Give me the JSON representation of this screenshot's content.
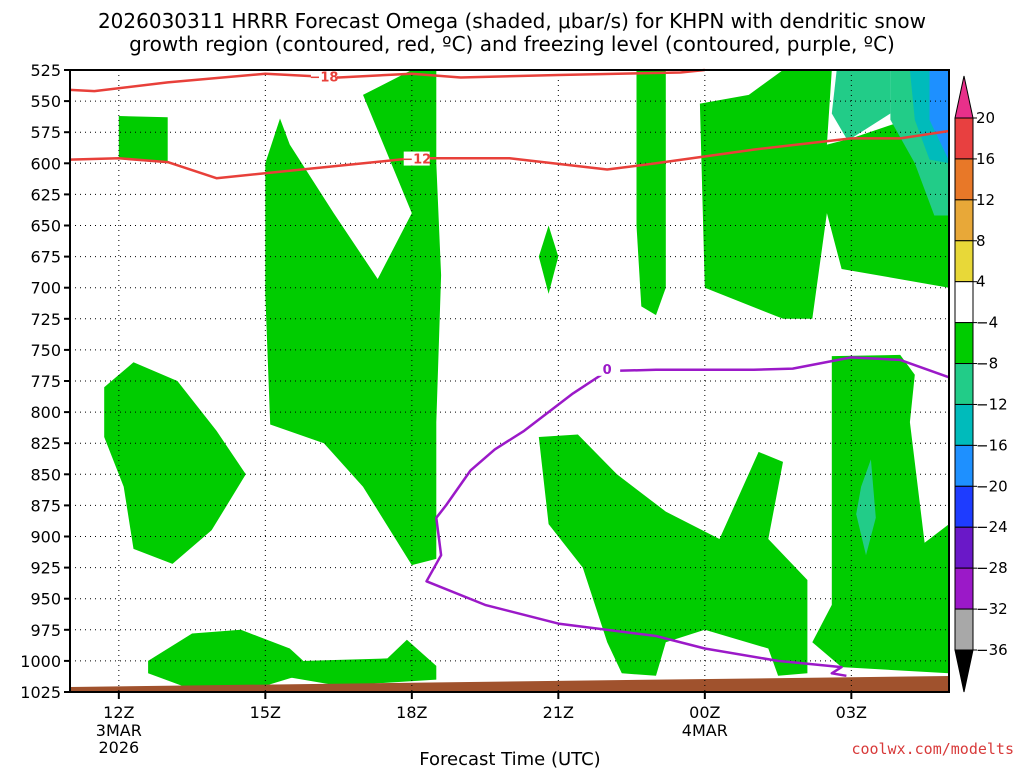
{
  "header": {
    "title_line1": "2026030311 HRRR Forecast Omega (shaded, μbar/s) for KHPN with dendritic snow",
    "title_line2": "growth region (contoured, red, ºC) and freezing level (contoured, purple, ºC)"
  },
  "footer": {
    "credit": "coolwx.com/modelts"
  },
  "colors": {
    "omega_minus4_to_minus8": "#00cc00",
    "omega_minus8_to_minus12": "#22cc88",
    "omega_minus12_to_minus16": "#00bbbb",
    "omega_minus16_to_minus20": "#1e90ff",
    "dgz_contour": "#e8403a",
    "freezing_contour": "#9b19c8",
    "ground": "#a0522d"
  },
  "chart_data": {
    "type": "heatmap",
    "xlabel": "Forecast Time (UTC)",
    "ylabel": "",
    "x_ticks": [
      {
        "hour": 12,
        "label": "12Z",
        "sub": [
          "3MAR",
          "2026"
        ]
      },
      {
        "hour": 15,
        "label": "15Z",
        "sub": []
      },
      {
        "hour": 18,
        "label": "18Z",
        "sub": []
      },
      {
        "hour": 21,
        "label": "21Z",
        "sub": []
      },
      {
        "hour": 24,
        "label": "00Z",
        "sub": [
          "4MAR"
        ]
      },
      {
        "hour": 27,
        "label": "03Z",
        "sub": []
      }
    ],
    "xlim": [
      11,
      29
    ],
    "y_ticks": [
      525,
      550,
      575,
      600,
      625,
      650,
      675,
      700,
      725,
      750,
      775,
      800,
      825,
      850,
      875,
      900,
      925,
      950,
      975,
      1000,
      1025
    ],
    "ylim": [
      525,
      1025
    ],
    "grid": true,
    "colorbar": {
      "labels": [
        "20",
        "16",
        "12",
        "8",
        "4",
        "−4",
        "−8",
        "−12",
        "−16",
        "−20",
        "−24",
        "−28",
        "−32",
        "−36"
      ],
      "bands": [
        "#e8308a",
        "#e84040",
        "#e87828",
        "#e8a838",
        "#e8d838",
        "#ffffff",
        "#00cc00",
        "#22cc88",
        "#00bbbb",
        "#1e90ff",
        "#1e3cff",
        "#6a18c8",
        "#9b19c8",
        "#a8a8a8",
        "#000000"
      ]
    },
    "contours": [
      {
        "name": "-18",
        "label": "−18",
        "label_at": [
          16.2,
          531
        ],
        "color": "#e8403a",
        "points": [
          [
            11,
            541
          ],
          [
            11.5,
            542
          ],
          [
            13,
            535
          ],
          [
            15,
            528
          ],
          [
            16.5,
            531
          ],
          [
            18,
            528
          ],
          [
            19,
            531
          ],
          [
            21,
            529
          ],
          [
            23.5,
            527
          ],
          [
            24,
            522
          ]
        ]
      },
      {
        "name": "-12",
        "label": "−12",
        "label_at": [
          18.1,
          597
        ],
        "color": "#e8403a",
        "points": [
          [
            11,
            597
          ],
          [
            12,
            596
          ],
          [
            13,
            599
          ],
          [
            14,
            612
          ],
          [
            16,
            604
          ],
          [
            18,
            596
          ],
          [
            20,
            596
          ],
          [
            22,
            605
          ],
          [
            23,
            600
          ],
          [
            25,
            589
          ],
          [
            27,
            580
          ],
          [
            28,
            580
          ],
          [
            29,
            574
          ]
        ]
      },
      {
        "name": "0",
        "label": "0",
        "label_at": [
          22.0,
          766
        ],
        "color": "#9b19c8",
        "points": [
          [
            29,
            772
          ],
          [
            28,
            758
          ],
          [
            27,
            756
          ],
          [
            25.8,
            765
          ],
          [
            25,
            766
          ],
          [
            23,
            766
          ],
          [
            22,
            767
          ],
          [
            21.3,
            785
          ],
          [
            20.3,
            815
          ],
          [
            19.7,
            830
          ],
          [
            19.2,
            847
          ],
          [
            18.7,
            875
          ],
          [
            18.5,
            885
          ],
          [
            18.6,
            915
          ],
          [
            18.3,
            936
          ],
          [
            19.5,
            955
          ],
          [
            21,
            970
          ],
          [
            23,
            980
          ],
          [
            24,
            990
          ],
          [
            25.5,
            1000
          ],
          [
            26.8,
            1005
          ],
          [
            26.6,
            1010
          ],
          [
            26.9,
            1012
          ]
        ]
      }
    ],
    "omega_regions": [
      {
        "level": "-4",
        "pts": [
          [
            12,
            562
          ],
          [
            13,
            563
          ],
          [
            13,
            600
          ],
          [
            12,
            596
          ]
        ]
      },
      {
        "level": "-4",
        "pts": [
          [
            11.7,
            780
          ],
          [
            12.3,
            760
          ],
          [
            13.2,
            775
          ],
          [
            14,
            815
          ],
          [
            14.6,
            850
          ],
          [
            13.9,
            895
          ],
          [
            13.1,
            922
          ],
          [
            12.3,
            910
          ],
          [
            12.1,
            860
          ],
          [
            11.7,
            820
          ]
        ]
      },
      {
        "level": "-4",
        "pts": [
          [
            12.6,
            1000
          ],
          [
            13.5,
            978
          ],
          [
            14.5,
            975
          ],
          [
            15.5,
            990
          ],
          [
            16,
            1008
          ],
          [
            15,
            1020
          ],
          [
            13.5,
            1023
          ],
          [
            12.6,
            1010
          ]
        ]
      },
      {
        "level": "-4",
        "pts": [
          [
            15.3,
            564
          ],
          [
            15.5,
            585
          ],
          [
            16.4,
            640
          ],
          [
            17.3,
            693
          ],
          [
            18,
            640
          ],
          [
            17,
            545
          ],
          [
            18,
            522
          ],
          [
            18.5,
            525
          ],
          [
            18.5,
            600
          ],
          [
            18.6,
            690
          ],
          [
            18.5,
            808
          ],
          [
            18.5,
            880
          ],
          [
            18.5,
            918
          ],
          [
            18.0,
            923
          ],
          [
            17.0,
            860
          ],
          [
            16.2,
            825
          ],
          [
            15.1,
            810
          ],
          [
            15.0,
            705
          ],
          [
            15.0,
            600
          ]
        ]
      },
      {
        "level": "-4",
        "pts": [
          [
            15.3,
            1005
          ],
          [
            15.8,
            1000
          ],
          [
            17.5,
            998
          ],
          [
            17.9,
            983
          ],
          [
            18.5,
            1004
          ],
          [
            18.5,
            1015
          ],
          [
            16.5,
            1020
          ],
          [
            15.3,
            1012
          ]
        ]
      },
      {
        "level": "-4",
        "pts": [
          [
            20.8,
            650
          ],
          [
            21,
            675
          ],
          [
            20.8,
            705
          ],
          [
            20.6,
            675
          ]
        ]
      },
      {
        "level": "-4",
        "pts": [
          [
            22.6,
            522
          ],
          [
            23.2,
            522
          ],
          [
            23.2,
            700
          ],
          [
            23.0,
            722
          ],
          [
            22.7,
            715
          ],
          [
            22.6,
            650
          ]
        ]
      },
      {
        "level": "-4",
        "pts": [
          [
            20.6,
            820
          ],
          [
            21.4,
            818
          ],
          [
            22.2,
            850
          ],
          [
            23.2,
            880
          ],
          [
            24.3,
            902
          ],
          [
            25.1,
            832
          ],
          [
            25.6,
            840
          ],
          [
            25.3,
            902
          ],
          [
            26.1,
            935
          ],
          [
            26.1,
            1010
          ],
          [
            25.5,
            1012
          ],
          [
            25.3,
            990
          ],
          [
            24.0,
            975
          ],
          [
            23.2,
            985
          ],
          [
            23.0,
            1012
          ],
          [
            22.3,
            1010
          ],
          [
            22.0,
            985
          ],
          [
            21.5,
            925
          ],
          [
            20.8,
            890
          ]
        ]
      },
      {
        "level": "-4",
        "pts": [
          [
            23.9,
            552
          ],
          [
            24.9,
            545
          ],
          [
            25.6,
            525
          ],
          [
            26.6,
            522
          ],
          [
            26.5,
            585
          ],
          [
            27,
            580
          ],
          [
            28.5,
            560
          ],
          [
            29,
            522
          ],
          [
            29,
            1010
          ],
          [
            26.8,
            1005
          ],
          [
            26.2,
            985
          ],
          [
            26.6,
            955
          ],
          [
            26.6,
            755
          ],
          [
            28.0,
            754
          ],
          [
            28.3,
            770
          ],
          [
            28.2,
            808
          ],
          [
            28.5,
            905
          ],
          [
            29,
            890
          ],
          [
            29,
            700
          ],
          [
            26.8,
            685
          ],
          [
            26.5,
            640
          ],
          [
            26.2,
            725
          ],
          [
            25.6,
            725
          ],
          [
            24.0,
            700
          ]
        ]
      },
      {
        "level": "-8",
        "pts": [
          [
            26.7,
            522
          ],
          [
            27.8,
            522
          ],
          [
            27.8,
            560
          ],
          [
            27,
            580
          ],
          [
            26.9,
            580
          ],
          [
            26.6,
            560
          ]
        ]
      },
      {
        "level": "-8",
        "pts": [
          [
            27.8,
            522
          ],
          [
            29,
            522
          ],
          [
            29,
            642
          ],
          [
            28.7,
            642
          ],
          [
            28.3,
            600
          ],
          [
            27.8,
            565
          ]
        ]
      },
      {
        "level": "-8",
        "pts": [
          [
            27.4,
            838
          ],
          [
            27.5,
            885
          ],
          [
            27.3,
            915
          ],
          [
            27.1,
            882
          ],
          [
            27.2,
            860
          ]
        ]
      },
      {
        "level": "-12",
        "pts": [
          [
            28.2,
            522
          ],
          [
            29,
            522
          ],
          [
            29,
            600
          ],
          [
            28.6,
            597
          ],
          [
            28.3,
            565
          ]
        ]
      },
      {
        "level": "-16",
        "pts": [
          [
            28.6,
            525
          ],
          [
            29,
            522
          ],
          [
            29,
            598
          ],
          [
            28.6,
            565
          ]
        ]
      }
    ]
  }
}
